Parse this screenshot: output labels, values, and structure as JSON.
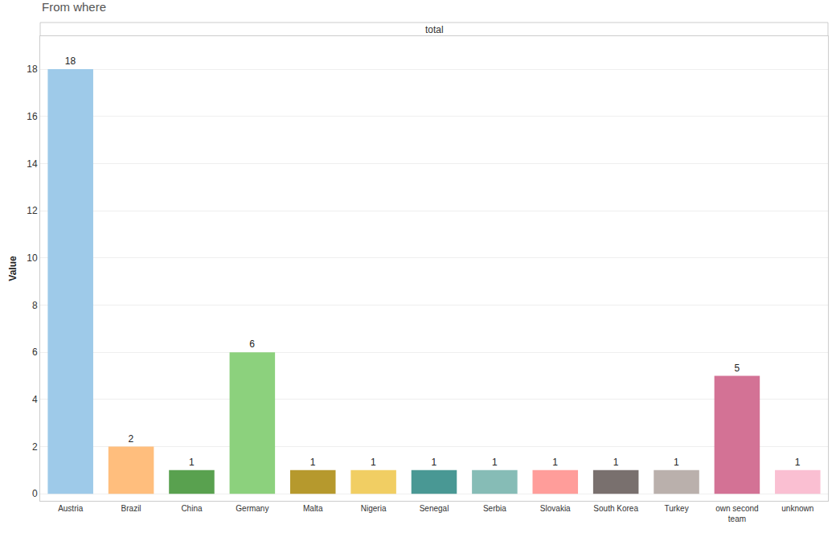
{
  "chart_data": {
    "type": "bar",
    "title": "From where",
    "subtitle": "total",
    "y_label": "Value",
    "categories": [
      "Austria",
      "Brazil",
      "China",
      "Germany",
      "Malta",
      "Nigeria",
      "Senegal",
      "Serbia",
      "Slovakia",
      "South Korea",
      "Turkey",
      "own second team",
      "unknown"
    ],
    "values": [
      18,
      2,
      1,
      6,
      1,
      1,
      1,
      1,
      1,
      1,
      1,
      5,
      1
    ],
    "colors": [
      "#9ecae9",
      "#ffbe7d",
      "#59a14f",
      "#8cd17d",
      "#b6992d",
      "#f1ce63",
      "#499894",
      "#86bcb6",
      "#ff9d9a",
      "#79706e",
      "#bab0ac",
      "#d37295",
      "#fabfd2"
    ],
    "ylim": [
      -0.3,
      19.4
    ],
    "yticks": [
      0,
      2,
      4,
      6,
      8,
      10,
      12,
      14,
      16,
      18
    ],
    "grid": true,
    "data_labels": true
  }
}
